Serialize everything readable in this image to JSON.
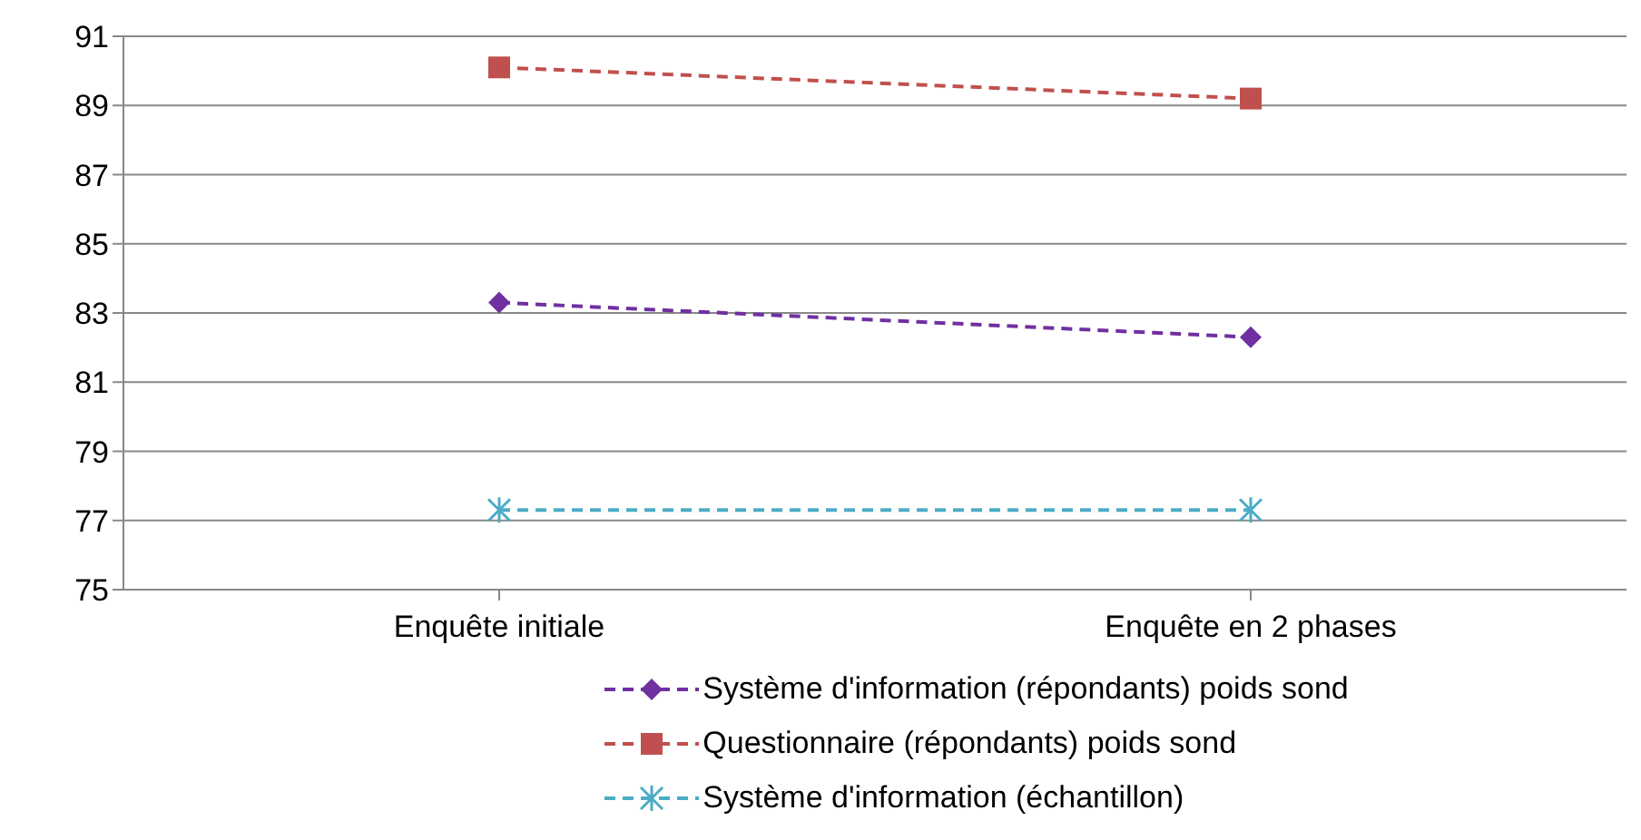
{
  "chart_data": {
    "type": "line",
    "categories": [
      "Enquête initiale",
      "Enquête en 2 phases"
    ],
    "series": [
      {
        "name": "Système d'information (répondants) poids sond",
        "color": "#7030a0",
        "values": [
          83.3,
          82.3
        ],
        "marker": "diamond"
      },
      {
        "name": "Questionnaire (répondants) poids sond",
        "color": "#c0504d",
        "values": [
          90.1,
          89.2
        ],
        "marker": "square"
      },
      {
        "name": "Système d'information (échantillon)",
        "color": "#4bacc6",
        "values": [
          77.3,
          77.3
        ],
        "marker": "cross"
      }
    ],
    "ylim": [
      75,
      91
    ],
    "yticks": [
      75,
      77,
      79,
      81,
      83,
      85,
      87,
      89,
      91
    ],
    "grid": "y",
    "legend": "bottom",
    "line_style": "dashed"
  }
}
